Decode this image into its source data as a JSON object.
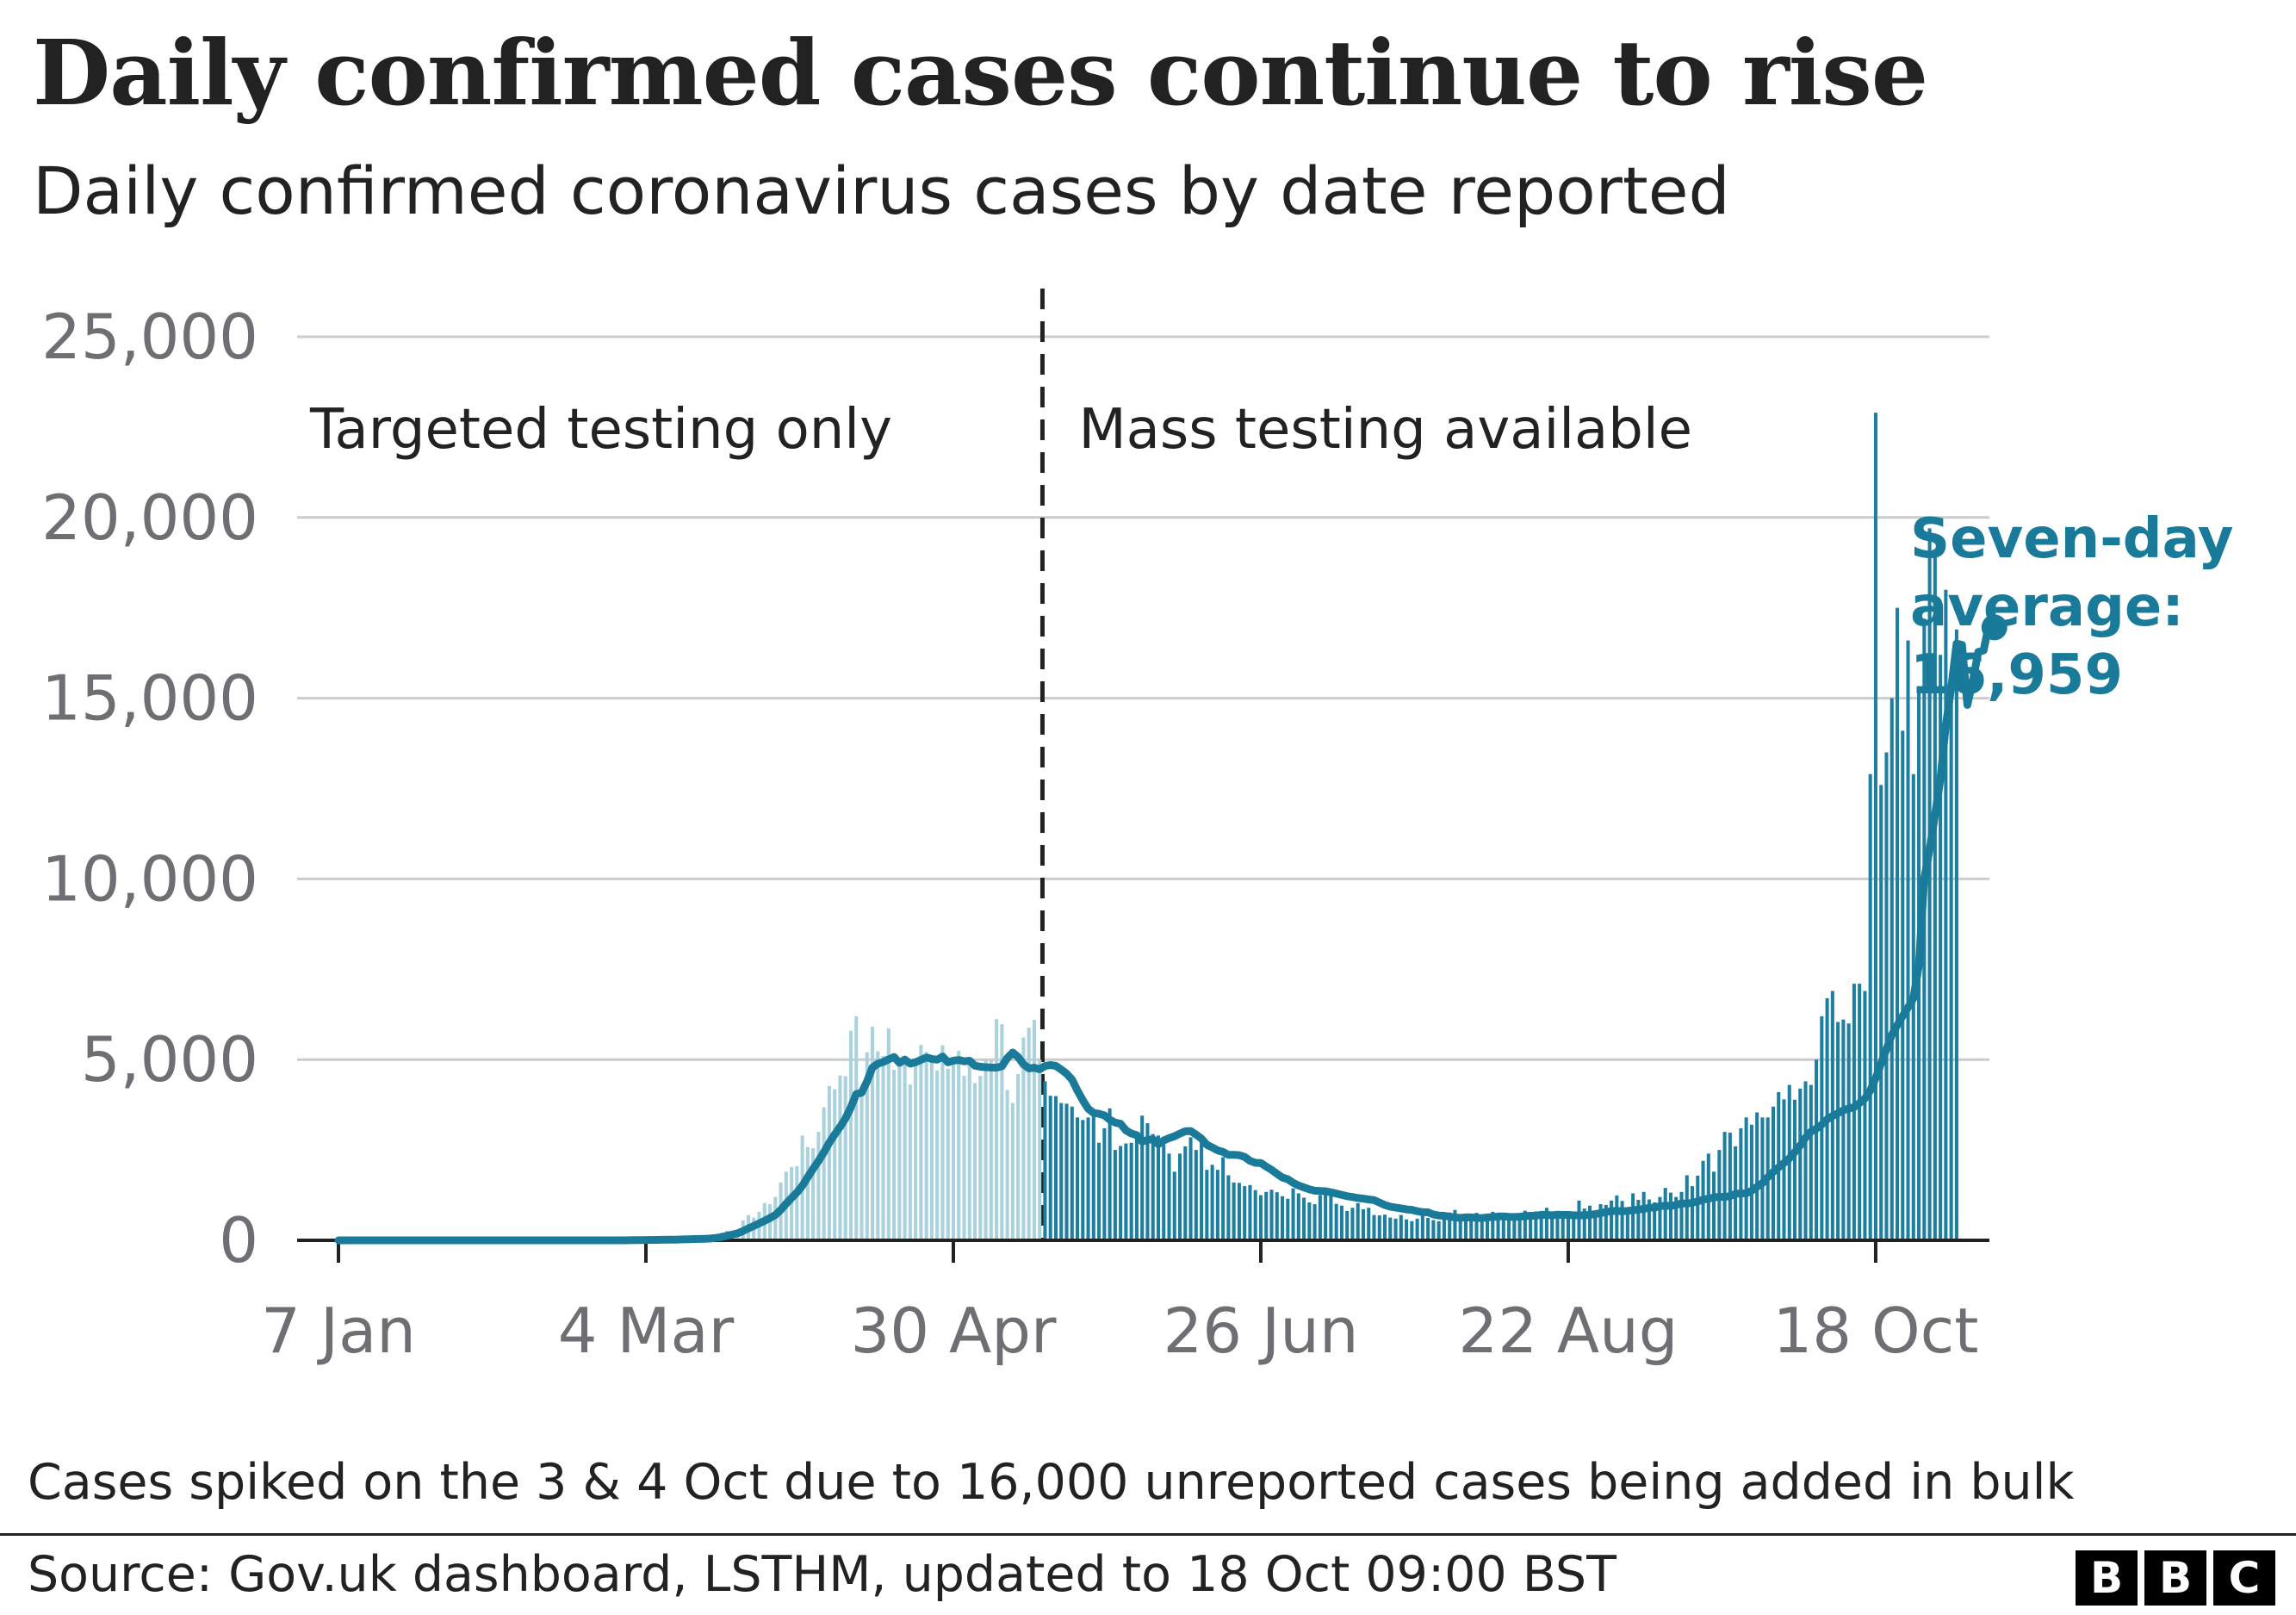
{
  "title": "Daily confirmed cases continue to rise",
  "subtitle": "Daily confirmed coronavirus cases by date reported",
  "note": "Cases spiked on the 3 & 4 Oct due to 16,000 unreported cases being added in bulk",
  "source": "Source: Gov.uk dashboard, LSTHM, updated to 18 Oct 09:00 BST",
  "logo": {
    "letters": [
      "B",
      "B",
      "C"
    ],
    "color": "#000000"
  },
  "colors": {
    "before": "#a9d2dd",
    "after": "#1d7fa0",
    "line": "#1a7a99",
    "annotation": "#1a7a99",
    "grid": "#cccccc",
    "axis": "#222222",
    "ticks": "#6e6e73"
  },
  "chart_data": {
    "type": "bar",
    "x_start": "7 Jan",
    "x_end": "18 Oct",
    "ylim": [
      0,
      25000
    ],
    "yticks": [
      0,
      5000,
      10000,
      15000,
      20000,
      25000
    ],
    "ytick_labels": [
      "0",
      "5,000",
      "10,000",
      "15,000",
      "20,000",
      "25,000"
    ],
    "xtick_labels": [
      "7 Jan",
      "4 Mar",
      "30 Apr",
      "26 Jun",
      "22 Aug",
      "18 Oct"
    ],
    "xtick_days": [
      0,
      57,
      114,
      171,
      228,
      285
    ],
    "xlabel": "",
    "ylabel": "",
    "grid": true,
    "divider_day": 131,
    "regions": [
      {
        "label": "Targeted testing only",
        "from_day": 0,
        "to_day": 131
      },
      {
        "label": "Mass testing available",
        "from_day": 131,
        "to_day": 285
      }
    ],
    "series": [
      {
        "kind": "daily_bars",
        "values": [
          0,
          0,
          0,
          0,
          0,
          0,
          0,
          0,
          0,
          0,
          0,
          0,
          0,
          0,
          0,
          0,
          0,
          0,
          0,
          0,
          0,
          0,
          0,
          0,
          0,
          2,
          0,
          0,
          0,
          0,
          0,
          0,
          0,
          0,
          0,
          1,
          1,
          0,
          2,
          0,
          0,
          0,
          0,
          0,
          0,
          0,
          0,
          0,
          0,
          0,
          0,
          0,
          1,
          4,
          4,
          12,
          23,
          8,
          4,
          11,
          25,
          20,
          33,
          35,
          48,
          43,
          67,
          48,
          64,
          74,
          148,
          210,
          269,
          250,
          300,
          550,
          700,
          630,
          790,
          1030,
          1000,
          1200,
          1600,
          1900,
          2030,
          2050,
          2900,
          2580,
          2550,
          3000,
          3680,
          4270,
          4180,
          4560,
          4540,
          5800,
          6200,
          4000,
          5200,
          5910,
          5230,
          5100,
          5860,
          4720,
          4900,
          4990,
          4310,
          5000,
          5410,
          5210,
          5100,
          4700,
          5400,
          4750,
          5030,
          5240,
          4550,
          4870,
          4350,
          4550,
          4980,
          4980,
          6120,
          5980,
          4160,
          3800,
          4600,
          5610,
          5880,
          6100,
          5000,
          4400,
          4000,
          3990,
          3800,
          3780,
          3700,
          3400,
          3330,
          3400,
          3600,
          2700,
          3100,
          3650,
          2500,
          2610,
          2680,
          2700,
          3000,
          3450,
          3240,
          2940,
          2900,
          2650,
          2400,
          1900,
          2400,
          2600,
          2850,
          2500,
          2700,
          1950,
          2090,
          1950,
          2300,
          1800,
          1600,
          1590,
          1500,
          1530,
          1390,
          1250,
          1340,
          1400,
          1330,
          1220,
          1150,
          1440,
          1300,
          1180,
          1050,
          1000,
          1250,
          1300,
          1290,
          1010,
          960,
          810,
          900,
          1030,
          860,
          900,
          700,
          690,
          710,
          630,
          600,
          700,
          580,
          530,
          600,
          740,
          620,
          560,
          530,
          740,
          770,
          840,
          650,
          590,
          600,
          760,
          700,
          690,
          790,
          660,
          600,
          610,
          720,
          740,
          820,
          690,
          800,
          810,
          900,
          660,
          700,
          740,
          810,
          750,
          1100,
          880,
          960,
          800,
          1000,
          980,
          1100,
          1240,
          1090,
          870,
          1300,
          1120,
          1340,
          1130,
          1050,
          1200,
          1450,
          1320,
          1200,
          1340,
          1800,
          1500,
          1790,
          2200,
          2400,
          1900,
          2500,
          3000,
          2980,
          2600,
          3100,
          3400,
          3200,
          3540,
          3400,
          3400,
          3700,
          4100,
          3900,
          4300,
          3890,
          4200,
          4400,
          4300,
          5000,
          6200,
          6700,
          6900,
          6040,
          6110,
          6000,
          7100,
          7100,
          6900,
          12900,
          22900,
          12600,
          13500,
          15000,
          17500,
          14100,
          16600,
          12900,
          15200,
          17200,
          19700,
          19000,
          16200,
          18000,
          15000,
          16900
        ]
      },
      {
        "kind": "seven_day_average",
        "name": "Seven-day average",
        "values": [
          0,
          0,
          0,
          0,
          0,
          0,
          0,
          0,
          0,
          0,
          0,
          0,
          0,
          0,
          0,
          0,
          0,
          0,
          0,
          0,
          0,
          0,
          0,
          0,
          0,
          0,
          0,
          0,
          0,
          0,
          0,
          0,
          0,
          0,
          0,
          0,
          0,
          0,
          0,
          0,
          0,
          0,
          0,
          0,
          0,
          0,
          0,
          0,
          0,
          0,
          0,
          0,
          0,
          1,
          2,
          5,
          8,
          9,
          10,
          12,
          15,
          16,
          18,
          21,
          26,
          30,
          35,
          39,
          44,
          51,
          67,
          87,
          124,
          158,
          195,
          255,
          331,
          397,
          469,
          539,
          618,
          700,
          843,
          1014,
          1172,
          1324,
          1508,
          1750,
          1979,
          2195,
          2438,
          2699,
          2929,
          3138,
          3373,
          3679,
          4045,
          4087,
          4397,
          4780,
          4886,
          4936,
          5006,
          5071,
          4910,
          5000,
          4889,
          4929,
          4993,
          5060,
          5019,
          4997,
          5085,
          4926,
          4972,
          4987,
          4954,
          4970,
          4833,
          4803,
          4791,
          4781,
          4778,
          4813,
          5042,
          5196,
          5073,
          4869,
          4756,
          4775,
          4733,
          4823,
          4850,
          4827,
          4726,
          4608,
          4448,
          4147,
          3875,
          3640,
          3525,
          3500,
          3457,
          3336,
          3258,
          3225,
          3040,
          2956,
          2911,
          2733,
          2779,
          2799,
          2657,
          2761,
          2830,
          2878,
          2954,
          3018,
          3025,
          2924,
          2814,
          2642,
          2568,
          2487,
          2447,
          2364,
          2364,
          2357,
          2307,
          2200,
          2144,
          2137,
          2040,
          1949,
          1840,
          1737,
          1690,
          1590,
          1519,
          1463,
          1411,
          1373,
          1366,
          1359,
          1327,
          1292,
          1256,
          1220,
          1199,
          1169,
          1154,
          1130,
          1113,
          1045,
          976,
          932,
          907,
          885,
          855,
          844,
          805,
          780,
          774,
          714,
          687,
          680,
          654,
          633,
          619,
          637,
          634,
          623,
          616,
          633,
          641,
          659,
          659,
          650,
          646,
          653,
          670,
          680,
          680,
          705,
          705,
          692,
          711,
          703,
          703,
          690,
          690,
          693,
          703,
          724,
          750,
          786,
          807,
          815,
          801,
          815,
          830,
          854,
          868,
          904,
          906,
          943,
          957,
          951,
          975,
          1024,
          1015,
          1038,
          1077,
          1124,
          1151,
          1187,
          1204,
          1204,
          1221,
          1286,
          1299,
          1301,
          1371,
          1482,
          1583,
          1750,
          1893,
          2018,
          2140,
          2265,
          2441,
          2624,
          2841,
          3006,
          3091,
          3201,
          3349,
          3442,
          3515,
          3598,
          3645,
          3685,
          3800,
          3923,
          4144,
          4490,
          4892,
          5292,
          5684,
          5954,
          6208,
          6442,
          6700,
          7607,
          10004,
          10823,
          11770,
          12757,
          14256,
          15270,
          16513,
          16476,
          14814,
          15471,
          16278,
          16321,
          17038,
          16959
        ]
      }
    ],
    "annotation": {
      "lines": [
        "Seven-day",
        "average:",
        "16,959"
      ],
      "value": 16959,
      "day": 285
    }
  }
}
